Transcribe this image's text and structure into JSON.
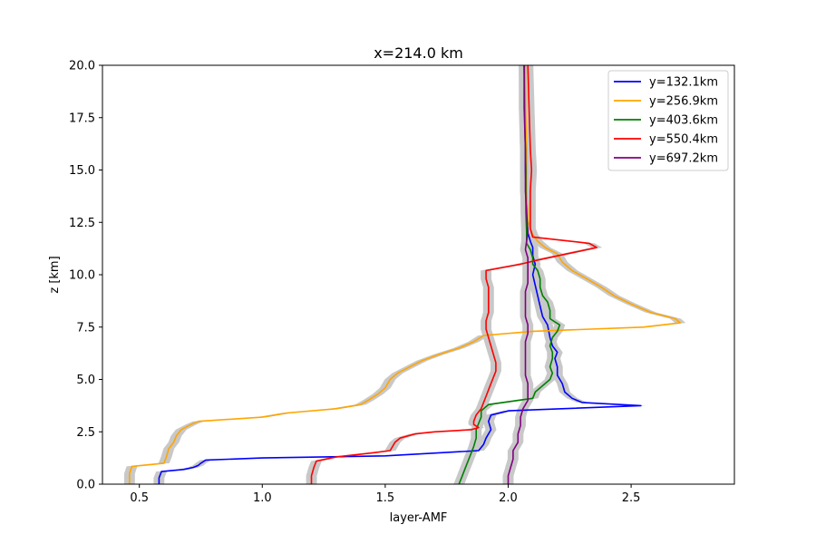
{
  "chart_data": {
    "type": "line",
    "title": "x=214.0 km",
    "xlabel": "layer-AMF",
    "ylabel": "z [km]",
    "xlim": [
      0.35,
      2.92
    ],
    "ylim": [
      0,
      20
    ],
    "xticks": [
      0.5,
      1.0,
      1.5,
      2.0,
      2.5
    ],
    "xtick_labels": [
      "0.5",
      "1.0",
      "1.5",
      "2.0",
      "2.5"
    ],
    "yticks": [
      0,
      2.5,
      5,
      7.5,
      10,
      12.5,
      15,
      17.5,
      20
    ],
    "ytick_labels": [
      "0.0",
      "2.5",
      "5.0",
      "7.5",
      "10.0",
      "12.5",
      "15.0",
      "17.5",
      "20.0"
    ],
    "grid": false,
    "legend_position": "top-right",
    "uncertainty_band_color": "#c8c8c8",
    "series": [
      {
        "name": "y=132.1km",
        "color": "#0000ff",
        "points": [
          [
            0.58,
            0
          ],
          [
            0.58,
            0.3
          ],
          [
            0.59,
            0.6
          ],
          [
            0.68,
            0.7
          ],
          [
            0.72,
            0.8
          ],
          [
            0.74,
            0.9
          ],
          [
            0.75,
            1.0
          ],
          [
            0.77,
            1.15
          ],
          [
            1.0,
            1.25
          ],
          [
            1.5,
            1.35
          ],
          [
            1.88,
            1.6
          ],
          [
            1.9,
            1.9
          ],
          [
            1.91,
            2.2
          ],
          [
            1.93,
            2.6
          ],
          [
            1.92,
            3.0
          ],
          [
            1.93,
            3.3
          ],
          [
            2.0,
            3.5
          ],
          [
            2.54,
            3.75
          ],
          [
            2.3,
            3.9
          ],
          [
            2.26,
            4.1
          ],
          [
            2.23,
            4.4
          ],
          [
            2.22,
            4.8
          ],
          [
            2.2,
            5.2
          ],
          [
            2.2,
            5.6
          ],
          [
            2.19,
            6.0
          ],
          [
            2.2,
            6.3
          ],
          [
            2.18,
            6.6
          ],
          [
            2.17,
            7.0
          ],
          [
            2.16,
            7.6
          ],
          [
            2.14,
            8.0
          ],
          [
            2.13,
            8.5
          ],
          [
            2.12,
            9.0
          ],
          [
            2.11,
            9.5
          ],
          [
            2.1,
            10.0
          ],
          [
            2.11,
            10.5
          ],
          [
            2.1,
            10.9
          ],
          [
            2.1,
            11.3
          ],
          [
            2.09,
            11.6
          ],
          [
            2.08,
            12.0
          ],
          [
            2.075,
            13.0
          ],
          [
            2.07,
            15.0
          ],
          [
            2.07,
            17.0
          ],
          [
            2.065,
            20.0
          ]
        ]
      },
      {
        "name": "y=256.9km",
        "color": "#ffa500",
        "points": [
          [
            0.46,
            0
          ],
          [
            0.46,
            0.5
          ],
          [
            0.47,
            0.85
          ],
          [
            0.6,
            1.0
          ],
          [
            0.61,
            1.3
          ],
          [
            0.62,
            1.7
          ],
          [
            0.64,
            2.0
          ],
          [
            0.65,
            2.3
          ],
          [
            0.67,
            2.6
          ],
          [
            0.71,
            2.85
          ],
          [
            0.74,
            3.0
          ],
          [
            1.0,
            3.2
          ],
          [
            1.1,
            3.4
          ],
          [
            1.3,
            3.6
          ],
          [
            1.4,
            3.8
          ],
          [
            1.43,
            4.0
          ],
          [
            1.47,
            4.3
          ],
          [
            1.5,
            4.6
          ],
          [
            1.52,
            5.0
          ],
          [
            1.55,
            5.3
          ],
          [
            1.6,
            5.6
          ],
          [
            1.65,
            5.9
          ],
          [
            1.72,
            6.2
          ],
          [
            1.8,
            6.5
          ],
          [
            1.86,
            6.8
          ],
          [
            1.9,
            7.1
          ],
          [
            2.1,
            7.3
          ],
          [
            2.55,
            7.5
          ],
          [
            2.7,
            7.7
          ],
          [
            2.68,
            7.9
          ],
          [
            2.58,
            8.2
          ],
          [
            2.5,
            8.6
          ],
          [
            2.43,
            9.0
          ],
          [
            2.38,
            9.4
          ],
          [
            2.32,
            9.8
          ],
          [
            2.26,
            10.2
          ],
          [
            2.22,
            10.6
          ],
          [
            2.2,
            11.0
          ],
          [
            2.15,
            11.3
          ],
          [
            2.12,
            11.6
          ],
          [
            2.1,
            11.9
          ],
          [
            2.09,
            12.2
          ],
          [
            2.08,
            12.6
          ],
          [
            2.08,
            13.0
          ],
          [
            2.075,
            14.0
          ],
          [
            2.075,
            16.0
          ],
          [
            2.07,
            18.0
          ],
          [
            2.07,
            20.0
          ]
        ]
      },
      {
        "name": "y=403.6km",
        "color": "#008000",
        "points": [
          [
            1.8,
            0
          ],
          [
            1.81,
            0.3
          ],
          [
            1.82,
            0.6
          ],
          [
            1.83,
            0.9
          ],
          [
            1.84,
            1.2
          ],
          [
            1.85,
            1.5
          ],
          [
            1.86,
            1.8
          ],
          [
            1.87,
            2.2
          ],
          [
            1.87,
            2.6
          ],
          [
            1.88,
            2.9
          ],
          [
            1.89,
            3.2
          ],
          [
            1.89,
            3.5
          ],
          [
            1.92,
            3.8
          ],
          [
            2.1,
            4.1
          ],
          [
            2.11,
            4.4
          ],
          [
            2.14,
            4.7
          ],
          [
            2.17,
            5.0
          ],
          [
            2.18,
            5.3
          ],
          [
            2.17,
            5.6
          ],
          [
            2.18,
            6.0
          ],
          [
            2.18,
            6.3
          ],
          [
            2.17,
            6.6
          ],
          [
            2.18,
            7.0
          ],
          [
            2.2,
            7.3
          ],
          [
            2.21,
            7.6
          ],
          [
            2.17,
            7.9
          ],
          [
            2.17,
            8.3
          ],
          [
            2.16,
            8.7
          ],
          [
            2.14,
            9.0
          ],
          [
            2.13,
            9.4
          ],
          [
            2.13,
            9.8
          ],
          [
            2.12,
            10.2
          ],
          [
            2.1,
            10.5
          ],
          [
            2.1,
            10.8
          ],
          [
            2.09,
            11.2
          ],
          [
            2.075,
            11.5
          ],
          [
            2.075,
            12.0
          ],
          [
            2.072,
            13.0
          ],
          [
            2.072,
            15.0
          ],
          [
            2.068,
            17.0
          ],
          [
            2.065,
            20.0
          ]
        ]
      },
      {
        "name": "y=550.4km",
        "color": "#ff0000",
        "points": [
          [
            1.2,
            0
          ],
          [
            1.2,
            0.4
          ],
          [
            1.21,
            0.8
          ],
          [
            1.22,
            1.1
          ],
          [
            1.3,
            1.3
          ],
          [
            1.45,
            1.5
          ],
          [
            1.52,
            1.6
          ],
          [
            1.53,
            1.8
          ],
          [
            1.54,
            2.0
          ],
          [
            1.56,
            2.2
          ],
          [
            1.62,
            2.4
          ],
          [
            1.7,
            2.5
          ],
          [
            1.85,
            2.6
          ],
          [
            1.88,
            2.7
          ],
          [
            1.86,
            2.85
          ],
          [
            1.86,
            3.0
          ],
          [
            1.87,
            3.3
          ],
          [
            1.89,
            3.6
          ],
          [
            1.9,
            3.9
          ],
          [
            1.91,
            4.2
          ],
          [
            1.92,
            4.5
          ],
          [
            1.93,
            4.8
          ],
          [
            1.94,
            5.1
          ],
          [
            1.95,
            5.4
          ],
          [
            1.95,
            5.8
          ],
          [
            1.94,
            6.2
          ],
          [
            1.93,
            6.6
          ],
          [
            1.92,
            7.0
          ],
          [
            1.91,
            7.4
          ],
          [
            1.91,
            7.8
          ],
          [
            1.92,
            8.2
          ],
          [
            1.92,
            8.6
          ],
          [
            1.92,
            9.0
          ],
          [
            1.92,
            9.4
          ],
          [
            1.91,
            9.8
          ],
          [
            1.91,
            10.2
          ],
          [
            2.05,
            10.5
          ],
          [
            2.12,
            10.7
          ],
          [
            2.2,
            10.9
          ],
          [
            2.36,
            11.3
          ],
          [
            2.33,
            11.5
          ],
          [
            2.1,
            11.8
          ],
          [
            2.09,
            12.2
          ],
          [
            2.09,
            13.0
          ],
          [
            2.09,
            14.0
          ],
          [
            2.095,
            15.0
          ],
          [
            2.09,
            16.0
          ],
          [
            2.085,
            18.0
          ],
          [
            2.08,
            20.0
          ]
        ]
      },
      {
        "name": "y=697.2km",
        "color": "#800080",
        "points": [
          [
            2.0,
            0
          ],
          [
            2.0,
            0.4
          ],
          [
            2.01,
            0.8
          ],
          [
            2.02,
            1.2
          ],
          [
            2.02,
            1.6
          ],
          [
            2.04,
            2.0
          ],
          [
            2.04,
            2.4
          ],
          [
            2.05,
            2.8
          ],
          [
            2.05,
            3.2
          ],
          [
            2.06,
            3.6
          ],
          [
            2.08,
            4.0
          ],
          [
            2.08,
            4.4
          ],
          [
            2.08,
            4.8
          ],
          [
            2.07,
            5.2
          ],
          [
            2.07,
            5.6
          ],
          [
            2.07,
            6.0
          ],
          [
            2.07,
            6.4
          ],
          [
            2.07,
            6.8
          ],
          [
            2.08,
            7.2
          ],
          [
            2.08,
            7.6
          ],
          [
            2.07,
            8.0
          ],
          [
            2.07,
            8.4
          ],
          [
            2.07,
            8.8
          ],
          [
            2.07,
            9.2
          ],
          [
            2.08,
            9.6
          ],
          [
            2.08,
            10.0
          ],
          [
            2.08,
            10.4
          ],
          [
            2.08,
            10.8
          ],
          [
            2.07,
            11.2
          ],
          [
            2.075,
            11.6
          ],
          [
            2.08,
            12.0
          ],
          [
            2.075,
            13.0
          ],
          [
            2.07,
            14.0
          ],
          [
            2.07,
            16.0
          ],
          [
            2.065,
            18.0
          ],
          [
            2.065,
            20.0
          ]
        ]
      }
    ]
  }
}
